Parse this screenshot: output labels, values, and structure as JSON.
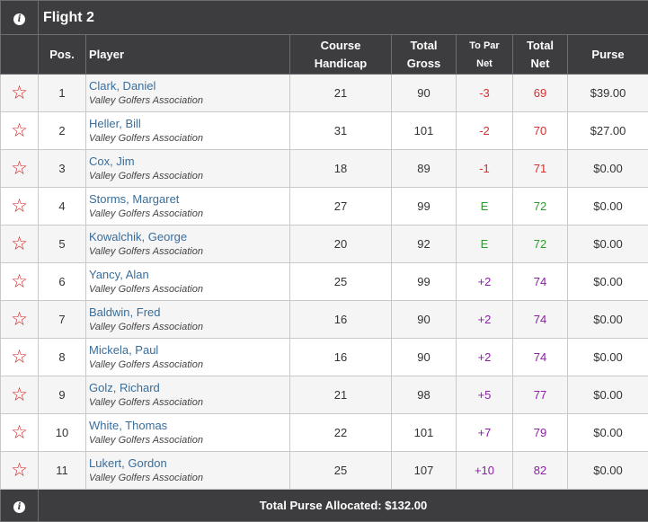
{
  "flight": {
    "title": "Flight 2",
    "info_icon": "info-icon"
  },
  "headers": {
    "pos": "Pos.",
    "player": "Player",
    "course_handicap_line1": "Course",
    "course_handicap_line2": "Handicap",
    "total_gross_line1": "Total",
    "total_gross_line2": "Gross",
    "to_par_net_line1": "To Par",
    "to_par_net_line2": "Net",
    "total_net_line1": "Total",
    "total_net_line2": "Net",
    "purse": "Purse"
  },
  "colors": {
    "under_par": "#d32f2f",
    "even_par": "#2e9a2e",
    "over_par": "#8a1fa3",
    "star": "#d21f1f",
    "link": "#3a6d9a"
  },
  "rows": [
    {
      "pos": "1",
      "name": "Clark, Daniel",
      "club": "Valley Golfers Association",
      "handicap": "21",
      "gross": "90",
      "to_par": "-3",
      "net": "69",
      "purse": "$39.00",
      "status": "under"
    },
    {
      "pos": "2",
      "name": "Heller, Bill",
      "club": "Valley Golfers Association",
      "handicap": "31",
      "gross": "101",
      "to_par": "-2",
      "net": "70",
      "purse": "$27.00",
      "status": "under"
    },
    {
      "pos": "3",
      "name": "Cox, Jim",
      "club": "Valley Golfers Association",
      "handicap": "18",
      "gross": "89",
      "to_par": "-1",
      "net": "71",
      "purse": "$0.00",
      "status": "under"
    },
    {
      "pos": "4",
      "name": "Storms, Margaret",
      "club": "Valley Golfers Association",
      "handicap": "27",
      "gross": "99",
      "to_par": "E",
      "net": "72",
      "purse": "$0.00",
      "status": "even"
    },
    {
      "pos": "5",
      "name": "Kowalchik, George",
      "club": "Valley Golfers Association",
      "handicap": "20",
      "gross": "92",
      "to_par": "E",
      "net": "72",
      "purse": "$0.00",
      "status": "even"
    },
    {
      "pos": "6",
      "name": "Yancy, Alan",
      "club": "Valley Golfers Association",
      "handicap": "25",
      "gross": "99",
      "to_par": "+2",
      "net": "74",
      "purse": "$0.00",
      "status": "over"
    },
    {
      "pos": "7",
      "name": "Baldwin, Fred",
      "club": "Valley Golfers Association",
      "handicap": "16",
      "gross": "90",
      "to_par": "+2",
      "net": "74",
      "purse": "$0.00",
      "status": "over"
    },
    {
      "pos": "8",
      "name": "Mickela, Paul",
      "club": "Valley Golfers Association",
      "handicap": "16",
      "gross": "90",
      "to_par": "+2",
      "net": "74",
      "purse": "$0.00",
      "status": "over"
    },
    {
      "pos": "9",
      "name": "Golz, Richard",
      "club": "Valley Golfers Association",
      "handicap": "21",
      "gross": "98",
      "to_par": "+5",
      "net": "77",
      "purse": "$0.00",
      "status": "over"
    },
    {
      "pos": "10",
      "name": "White, Thomas",
      "club": "Valley Golfers Association",
      "handicap": "22",
      "gross": "101",
      "to_par": "+7",
      "net": "79",
      "purse": "$0.00",
      "status": "over"
    },
    {
      "pos": "11",
      "name": "Lukert, Gordon",
      "club": "Valley Golfers Association",
      "handicap": "25",
      "gross": "107",
      "to_par": "+10",
      "net": "82",
      "purse": "$0.00",
      "status": "over"
    }
  ],
  "footer": {
    "total_purse_label": "Total Purse Allocated:",
    "total_purse_value": "$132.00"
  }
}
